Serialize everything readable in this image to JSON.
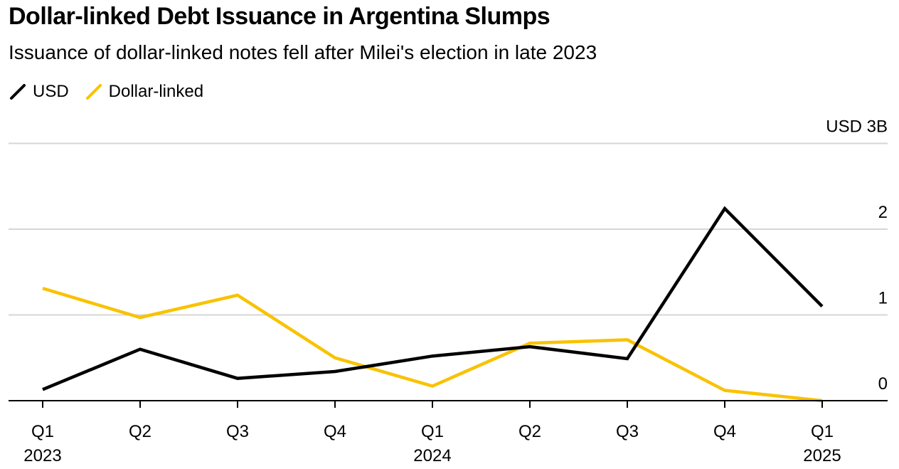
{
  "title": "Dollar-linked Debt Issuance in Argentina Slumps",
  "subtitle": "Issuance of dollar-linked notes fell after Milei's election in late 2023",
  "legend": [
    {
      "label": "USD",
      "color": "#000000"
    },
    {
      "label": "Dollar-linked",
      "color": "#f9c200"
    }
  ],
  "chart_data": {
    "type": "line",
    "title": "Dollar-linked Debt Issuance in Argentina Slumps",
    "subtitle": "Issuance of dollar-linked notes fell after Milei's election in late 2023",
    "x": [
      "Q1 2023",
      "Q2 2023",
      "Q3 2023",
      "Q4 2023",
      "Q1 2024",
      "Q2 2024",
      "Q3 2024",
      "Q4 2024",
      "Q1 2025"
    ],
    "x_tick_labels": [
      {
        "quarter": "Q1",
        "year": "2023"
      },
      {
        "quarter": "Q2",
        "year": ""
      },
      {
        "quarter": "Q3",
        "year": ""
      },
      {
        "quarter": "Q4",
        "year": ""
      },
      {
        "quarter": "Q1",
        "year": "2024"
      },
      {
        "quarter": "Q2",
        "year": ""
      },
      {
        "quarter": "Q3",
        "year": ""
      },
      {
        "quarter": "Q4",
        "year": ""
      },
      {
        "quarter": "Q1",
        "year": "2025"
      }
    ],
    "series": [
      {
        "name": "USD",
        "color": "#000000",
        "values": [
          0.13,
          0.6,
          0.26,
          0.34,
          0.52,
          0.63,
          0.49,
          2.24,
          1.1
        ]
      },
      {
        "name": "Dollar-linked",
        "color": "#f9c200",
        "values": [
          1.31,
          0.97,
          1.23,
          0.5,
          0.17,
          0.67,
          0.71,
          0.12,
          0.0
        ]
      }
    ],
    "y_unit_label": "USD 3B",
    "y_tick_labels": [
      "0",
      "1",
      "2"
    ],
    "y_ticks": [
      0,
      1,
      2,
      3
    ],
    "ylim": [
      0,
      3
    ],
    "ylabel": "",
    "xlabel": "",
    "grid": true,
    "legend_position": "top-left"
  }
}
